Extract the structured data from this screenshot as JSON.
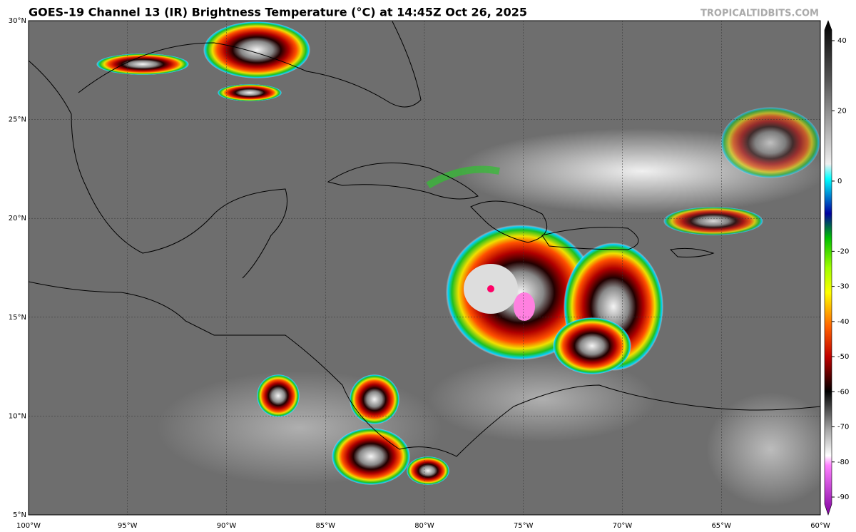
{
  "header": {
    "title": "GOES-19 Channel 13 (IR) Brightness Temperature (°C) at 14:45Z Oct 26, 2025",
    "watermark": "TROPICALTIDBITS.COM"
  },
  "map": {
    "lat_labels": [
      "30°N",
      "25°N",
      "20°N",
      "15°N",
      "10°N",
      "5°N"
    ],
    "lon_labels": [
      "100°W",
      "95°W",
      "90°W",
      "85°W",
      "80°W",
      "75°W",
      "70°W",
      "65°W",
      "60°W"
    ]
  },
  "colorbar": {
    "ticks": [
      40,
      20,
      0,
      -20,
      -30,
      -40,
      -50,
      -60,
      -70,
      -80,
      -90
    ]
  }
}
